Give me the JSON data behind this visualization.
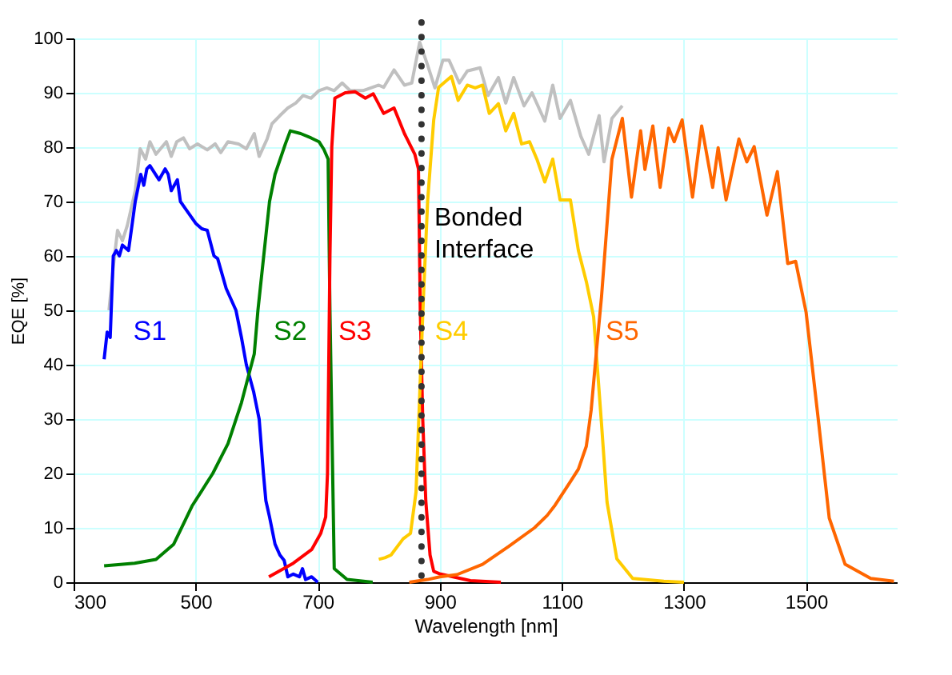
{
  "chart_data": {
    "type": "line",
    "xlabel": "Wavelength [nm]",
    "ylabel": "EQE [%]",
    "xlim": [
      300,
      1650
    ],
    "ylim": [
      0,
      100
    ],
    "xticks": [
      300,
      500,
      700,
      900,
      1100,
      1300,
      1500
    ],
    "yticks": [
      0,
      10,
      20,
      30,
      40,
      50,
      60,
      70,
      80,
      90,
      100
    ],
    "grid": true,
    "marker": "none",
    "line_style": "solid",
    "ref_lines": [
      {
        "axis": "x",
        "value": 870,
        "label": "Bonded Interface",
        "color": "#333333",
        "line_style": "dotted"
      }
    ],
    "series": [
      {
        "color": "#c0c0c0",
        "x": [
          358,
          365,
          372,
          380,
          388,
          401,
          409,
          418,
          425,
          435,
          452,
          460,
          469,
          480,
          490,
          503,
          519,
          532,
          541,
          553,
          570,
          583,
          596,
          604,
          617,
          625,
          638,
          651,
          664,
          676,
          689,
          702,
          715,
          727,
          740,
          753,
          774,
          800,
          808,
          825,
          842,
          854,
          867,
          880,
          892,
          905,
          915,
          932,
          945,
          966,
          979,
          996,
          1008,
          1021,
          1038,
          1051,
          1072,
          1085,
          1097,
          1114,
          1131,
          1144,
          1161,
          1169,
          1182,
          1199
        ],
        "values": [
          50,
          58,
          64.7,
          62.8,
          65.6,
          72,
          79.7,
          77.8,
          81,
          78.7,
          81,
          78.3,
          81,
          81.7,
          79.7,
          80.6,
          79.5,
          80.6,
          79,
          81,
          80.6,
          79.7,
          82.5,
          78.3,
          81.5,
          84.3,
          85.8,
          87.2,
          88.1,
          89.5,
          89,
          90.4,
          90.9,
          90.4,
          91.8,
          90.4,
          90.4,
          91.4,
          91,
          94.2,
          91.4,
          91.8,
          99.3,
          95.1,
          90.9,
          96,
          96,
          91.8,
          94,
          94.6,
          89.5,
          92.8,
          88.1,
          92.8,
          87.6,
          90,
          84.8,
          91.4,
          85.3,
          88.6,
          82,
          78.7,
          85.8,
          77.3,
          85.3,
          87.6
        ]
      },
      {
        "name": "S1",
        "color": "#0000ff",
        "x": [
          350,
          355,
          360,
          365,
          370,
          375,
          380,
          390,
          401,
          410,
          415,
          420,
          425,
          440,
          450,
          455,
          460,
          470,
          475,
          485,
          500,
          510,
          519,
          530,
          536,
          550,
          566,
          575,
          583,
          595,
          604,
          611,
          615,
          621,
          630,
          638,
          645,
          651,
          660,
          670,
          675,
          680,
          690,
          700
        ],
        "values": [
          41,
          46,
          45,
          60,
          61,
          60,
          62,
          61,
          70,
          75,
          73,
          76,
          76.6,
          74,
          76,
          75,
          72,
          74,
          70,
          68.4,
          66,
          65,
          64.7,
          60,
          59.5,
          54,
          50,
          45,
          40,
          35,
          30,
          20,
          15,
          12,
          7,
          5,
          4,
          1,
          1.5,
          1,
          2.5,
          0.5,
          1,
          0
        ]
      },
      {
        "name": "S2",
        "color": "#008000",
        "x": [
          350,
          400,
          435,
          464,
          494,
          528,
          553,
          575,
          596,
          602,
          621,
          630,
          647,
          655,
          672,
          689,
          702,
          710,
          717,
          720,
          727,
          748,
          790
        ],
        "values": [
          3,
          3.5,
          4.2,
          7,
          14,
          20,
          25.5,
          33,
          42,
          50,
          70,
          75,
          80.6,
          83,
          82.5,
          81.7,
          81,
          79.6,
          77.8,
          50,
          2.5,
          0.5,
          0
        ]
      },
      {
        "name": "S3",
        "color": "#ff0000",
        "x": [
          620,
          660,
          690,
          705,
          713,
          716,
          718,
          720,
          723,
          728,
          745,
          761,
          778,
          791,
          808,
          825,
          842,
          859,
          865,
          868,
          872,
          877,
          884,
          890,
          901,
          950,
          1000
        ],
        "values": [
          1,
          3.5,
          6,
          9,
          12,
          20,
          40,
          60,
          80,
          89,
          90,
          90.2,
          89,
          89.8,
          86.2,
          87.2,
          82.5,
          78.7,
          76,
          50,
          30,
          15,
          5,
          2,
          1.5,
          0.3,
          0
        ]
      },
      {
        "name": "S4",
        "color": "#ffcc00",
        "x": [
          800,
          810,
          820,
          840,
          852,
          861,
          873,
          880,
          890,
          898,
          919,
          930,
          945,
          958,
          970,
          981,
          996,
          1008,
          1021,
          1034,
          1047,
          1059,
          1072,
          1085,
          1097,
          1114,
          1127,
          1140,
          1152,
          1165,
          1174,
          1190,
          1216,
          1267,
          1300
        ],
        "values": [
          4.2,
          4.5,
          5,
          8,
          9,
          16.6,
          52,
          70,
          85,
          91,
          93,
          88.6,
          91.4,
          90.9,
          91.4,
          86.2,
          88,
          83,
          86.2,
          80.6,
          81,
          77.8,
          73.6,
          77.8,
          70.3,
          70.3,
          61,
          55.3,
          48.8,
          29,
          14.7,
          4.3,
          0.7,
          0.2,
          0
        ]
      },
      {
        "name": "S5",
        "color": "#ff6600",
        "x": [
          850,
          880,
          900,
          928,
          970,
          1013,
          1055,
          1076,
          1089,
          1114,
          1127,
          1140,
          1148,
          1157,
          1165,
          1182,
          1199,
          1214,
          1229,
          1236,
          1249,
          1261,
          1275,
          1284,
          1297,
          1314,
          1329,
          1347,
          1356,
          1369,
          1390,
          1403,
          1415,
          1436,
          1453,
          1470,
          1483,
          1500,
          1521,
          1538,
          1564,
          1606,
          1644
        ],
        "values": [
          0,
          0.5,
          1,
          1.4,
          3.3,
          6.6,
          10,
          12.3,
          14.2,
          18.5,
          20.8,
          25,
          31.7,
          43,
          52.6,
          77.8,
          85.3,
          70.8,
          83,
          75.9,
          83.9,
          72.6,
          83.5,
          81,
          85,
          70.8,
          83.9,
          72.6,
          79.9,
          70.3,
          81.5,
          77.3,
          80.1,
          67.5,
          75.5,
          58.6,
          59,
          49.7,
          29,
          11.8,
          3.3,
          0.7,
          0.2
        ]
      }
    ]
  }
}
